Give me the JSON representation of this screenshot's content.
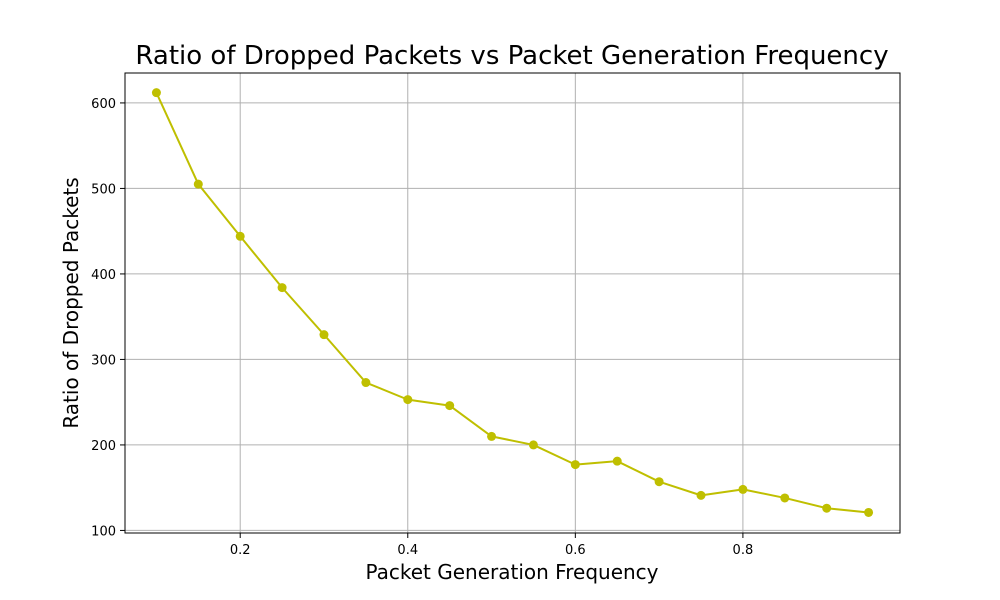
{
  "chart_data": {
    "type": "line",
    "title": "Ratio of Dropped Packets vs Packet Generation Frequency",
    "xlabel": "Packet Generation Frequency",
    "ylabel": "Ratio of Dropped Packets",
    "xlim": [
      0.0625,
      0.9875
    ],
    "ylim": [
      97,
      635
    ],
    "xticks": [
      0.2,
      0.4,
      0.6,
      0.8
    ],
    "xtick_labels": [
      "0.2",
      "0.4",
      "0.6",
      "0.8"
    ],
    "yticks": [
      100,
      200,
      300,
      400,
      500,
      600
    ],
    "ytick_labels": [
      "100",
      "200",
      "300",
      "400",
      "500",
      "600"
    ],
    "grid": true,
    "series": [
      {
        "color": "#bfbf00",
        "marker": "circle",
        "x": [
          0.1,
          0.15,
          0.2,
          0.25,
          0.3,
          0.35,
          0.4,
          0.45,
          0.5,
          0.55,
          0.6,
          0.65,
          0.7,
          0.75,
          0.8,
          0.85,
          0.9,
          0.95
        ],
        "y": [
          612,
          505,
          444,
          384,
          329,
          273,
          253,
          246,
          210,
          200,
          177,
          181,
          157,
          141,
          148,
          138,
          126,
          121
        ]
      }
    ]
  }
}
